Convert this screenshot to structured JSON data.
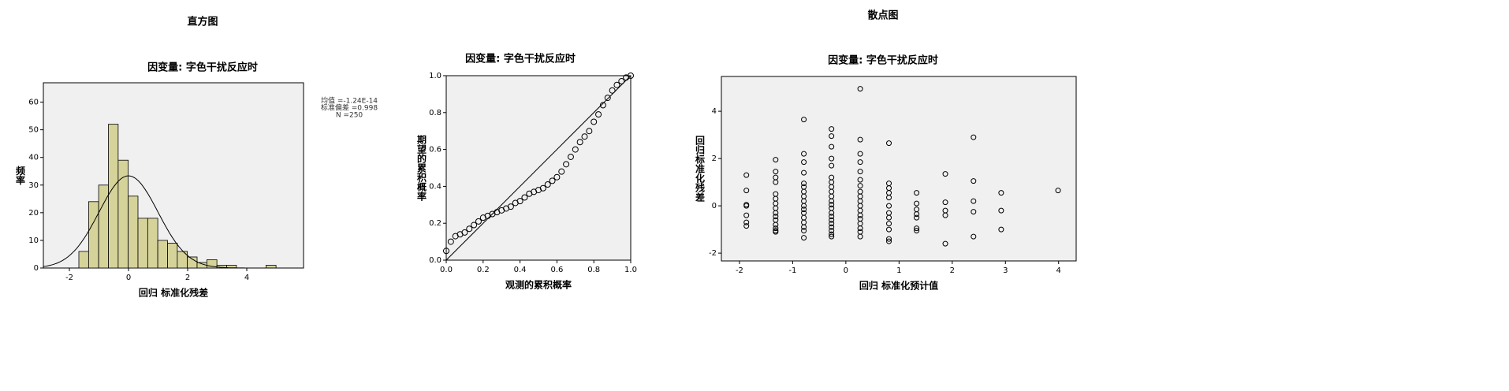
{
  "chart_data": [
    {
      "type": "histogram",
      "title": "直方图",
      "subtitle": "因变量: 字色干扰反应时",
      "x_label": "回归 标准化残差",
      "y_label": "频率",
      "color": "#d6d39a",
      "bins": [
        -1.68,
        -1.35,
        -1.01,
        -0.68,
        -0.35,
        -0.01,
        0.32,
        0.65,
        0.99,
        1.32,
        1.65,
        1.99,
        2.32,
        2.65,
        2.99,
        3.32,
        3.65,
        3.99,
        4.32,
        4.65,
        4.99
      ],
      "counts": [
        6,
        24,
        30,
        52,
        39,
        26,
        18,
        18,
        10,
        9,
        6,
        4,
        2,
        3,
        1,
        1,
        0,
        0,
        0,
        1
      ],
      "stats": [
        {
          "value": -1.24e-14,
          "label": "均值 =-1.24E-14"
        },
        {
          "value": 0.998,
          "label": "标准偏差 =0.998"
        },
        {
          "value": 250,
          "label": "N =250"
        }
      ],
      "xlim": [
        -2.88,
        5.92
      ],
      "ylim": [
        0,
        67
      ],
      "xticks": [
        -2,
        0,
        2,
        4
      ],
      "yticks": [
        0,
        10,
        20,
        30,
        40,
        50,
        60
      ]
    },
    {
      "type": "pp",
      "subtitle": "因变量: 字色干扰反应时",
      "x_label": "观测的累积概率",
      "y_label": "期望的累积概率",
      "x": [
        0,
        0.025,
        0.05,
        0.075,
        0.1,
        0.125,
        0.15,
        0.175,
        0.2,
        0.225,
        0.25,
        0.275,
        0.3,
        0.325,
        0.35,
        0.375,
        0.4,
        0.425,
        0.45,
        0.475,
        0.5,
        0.525,
        0.55,
        0.575,
        0.6,
        0.625,
        0.65,
        0.675,
        0.7,
        0.725,
        0.75,
        0.775,
        0.8,
        0.825,
        0.85,
        0.875,
        0.9,
        0.925,
        0.95,
        0.975,
        1.0
      ],
      "y": [
        0.05,
        0.1,
        0.13,
        0.14,
        0.15,
        0.17,
        0.19,
        0.21,
        0.23,
        0.24,
        0.25,
        0.26,
        0.27,
        0.28,
        0.29,
        0.31,
        0.32,
        0.34,
        0.36,
        0.37,
        0.38,
        0.39,
        0.41,
        0.43,
        0.45,
        0.48,
        0.52,
        0.56,
        0.6,
        0.64,
        0.67,
        0.7,
        0.75,
        0.79,
        0.84,
        0.88,
        0.92,
        0.95,
        0.97,
        0.99,
        1.0
      ],
      "xlim": [
        0,
        1
      ],
      "ylim": [
        0,
        1
      ],
      "xticks": [
        {
          "value": 0,
          "label": "0.0"
        },
        0.2,
        0.4,
        0.6,
        0.8,
        {
          "value": 1,
          "label": "1.0"
        }
      ],
      "yticks": [
        {
          "value": 0,
          "label": "0.0"
        },
        0.2,
        0.4,
        0.6,
        0.8,
        {
          "value": 1,
          "label": "1.0"
        }
      ]
    },
    {
      "type": "scatter",
      "title": "散点图",
      "subtitle": "因变量: 字色干扰反应时",
      "x_label": "回归 标准化预计值",
      "y_label": "回归标准化残差",
      "x": [
        -1.87,
        -1.87,
        -1.87,
        -1.87,
        -1.87,
        -1.87,
        -1.87,
        -1.32,
        -1.32,
        -1.32,
        -1.32,
        -1.32,
        -1.32,
        -1.32,
        -1.32,
        -1.32,
        -1.32,
        -1.32,
        -1.32,
        -1.32,
        -1.32,
        -1.32,
        -0.79,
        -0.79,
        -0.79,
        -0.79,
        -0.79,
        -0.79,
        -0.79,
        -0.79,
        -0.79,
        -0.79,
        -0.79,
        -0.79,
        -0.79,
        -0.79,
        -0.79,
        -0.79,
        -0.79,
        -0.27,
        -0.27,
        -0.27,
        -0.27,
        -0.27,
        -0.27,
        -0.27,
        -0.27,
        -0.27,
        -0.27,
        -0.27,
        -0.27,
        -0.27,
        -0.27,
        -0.27,
        -0.27,
        -0.27,
        -0.27,
        -0.27,
        -0.27,
        -0.27,
        0.27,
        0.27,
        0.27,
        0.27,
        0.27,
        0.27,
        0.27,
        0.27,
        0.27,
        0.27,
        0.27,
        0.27,
        0.27,
        0.27,
        0.27,
        0.27,
        0.27,
        0.27,
        0.81,
        0.81,
        0.81,
        0.81,
        0.81,
        0.81,
        0.81,
        0.81,
        0.81,
        0.81,
        0.81,
        0.81,
        1.33,
        1.33,
        1.33,
        1.33,
        1.33,
        1.33,
        1.33,
        1.87,
        1.87,
        1.87,
        1.87,
        1.87,
        2.4,
        2.4,
        2.4,
        2.4,
        2.4,
        2.92,
        2.92,
        2.92,
        3.99
      ],
      "y": [
        1.3,
        0.65,
        0.05,
        0.0,
        -0.4,
        -0.7,
        -0.85,
        1.95,
        1.45,
        1.2,
        1.0,
        0.5,
        0.3,
        0.1,
        -0.1,
        -0.3,
        -0.45,
        -0.6,
        -0.8,
        -0.95,
        -1.05,
        -1.1,
        3.65,
        2.2,
        1.85,
        1.4,
        0.95,
        0.8,
        0.6,
        0.4,
        0.2,
        0.0,
        -0.15,
        -0.3,
        -0.5,
        -0.7,
        -0.9,
        -1.05,
        -1.35,
        3.25,
        2.95,
        2.5,
        2.0,
        1.7,
        1.2,
        1.0,
        0.8,
        0.6,
        0.4,
        0.2,
        0.05,
        -0.1,
        -0.3,
        -0.45,
        -0.6,
        -0.75,
        -0.9,
        -1.05,
        -1.2,
        -1.3,
        4.95,
        2.8,
        2.2,
        1.85,
        1.45,
        1.1,
        0.85,
        0.6,
        0.4,
        0.2,
        0.0,
        -0.2,
        -0.4,
        -0.55,
        -0.75,
        -0.95,
        -1.1,
        -1.3,
        2.65,
        0.95,
        0.75,
        0.55,
        0.35,
        0.0,
        -0.3,
        -0.5,
        -0.75,
        -1.0,
        -1.4,
        -1.5,
        0.55,
        0.1,
        -0.15,
        -0.35,
        -0.5,
        -0.95,
        -1.05,
        1.35,
        0.15,
        -0.2,
        -0.4,
        -1.6,
        2.9,
        1.05,
        0.2,
        -0.25,
        -1.3,
        0.55,
        -0.2,
        -1.0,
        0.65
      ],
      "xlim": [
        -2.34,
        4.33
      ],
      "ylim": [
        -2.33,
        5.47
      ],
      "xticks": [
        -2,
        -1,
        0,
        1,
        2,
        3,
        4
      ],
      "yticks": [
        -2,
        0,
        2,
        4
      ]
    }
  ]
}
